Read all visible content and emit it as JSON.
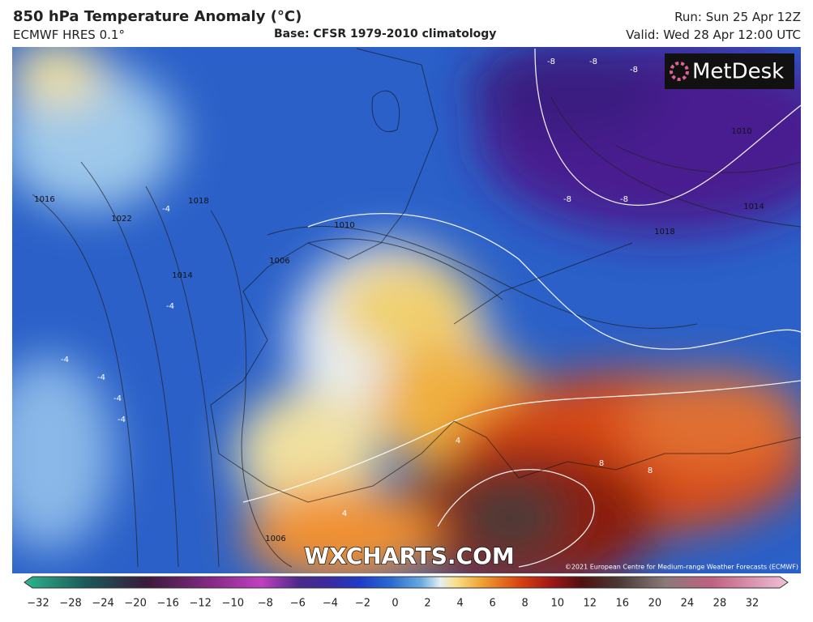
{
  "header": {
    "title": "850 hPa Temperature Anomaly (°C)",
    "model": "ECMWF HRES 0.1°",
    "base": "Base: CFSR 1979-2010 climatology",
    "run": "Run: Sun 25 Apr 12Z",
    "valid": "Valid: Wed 28 Apr 12:00 UTC"
  },
  "logo": "MetDesk",
  "watermark": "WXCHARTS.COM",
  "copyright": "©2021 European Centre for Medium-range Weather Forecasts (ECMWF)",
  "contour_labels": [
    "-8",
    "-8",
    "-8",
    "-8",
    "-8",
    "1010",
    "1014",
    "1018",
    "1016",
    "1022",
    "1018",
    "1014",
    "1010",
    "1006",
    "-4",
    "-4",
    "-4",
    "-4",
    "-4",
    "-4",
    "4",
    "4",
    "8",
    "8",
    "1006"
  ],
  "colorbar": {
    "ticks": [
      {
        "value": -32,
        "label": "−32"
      },
      {
        "value": -28,
        "label": "−28"
      },
      {
        "value": -24,
        "label": "−24"
      },
      {
        "value": -20,
        "label": "−20"
      },
      {
        "value": -16,
        "label": "−16"
      },
      {
        "value": -12,
        "label": "−12"
      },
      {
        "value": -10,
        "label": "−10"
      },
      {
        "value": -8,
        "label": "−8"
      },
      {
        "value": -6,
        "label": "−6"
      },
      {
        "value": -4,
        "label": "−4"
      },
      {
        "value": -2,
        "label": "−2"
      },
      0,
      2,
      4,
      6,
      8,
      10,
      12,
      16,
      20,
      24,
      28,
      32
    ]
  }
}
